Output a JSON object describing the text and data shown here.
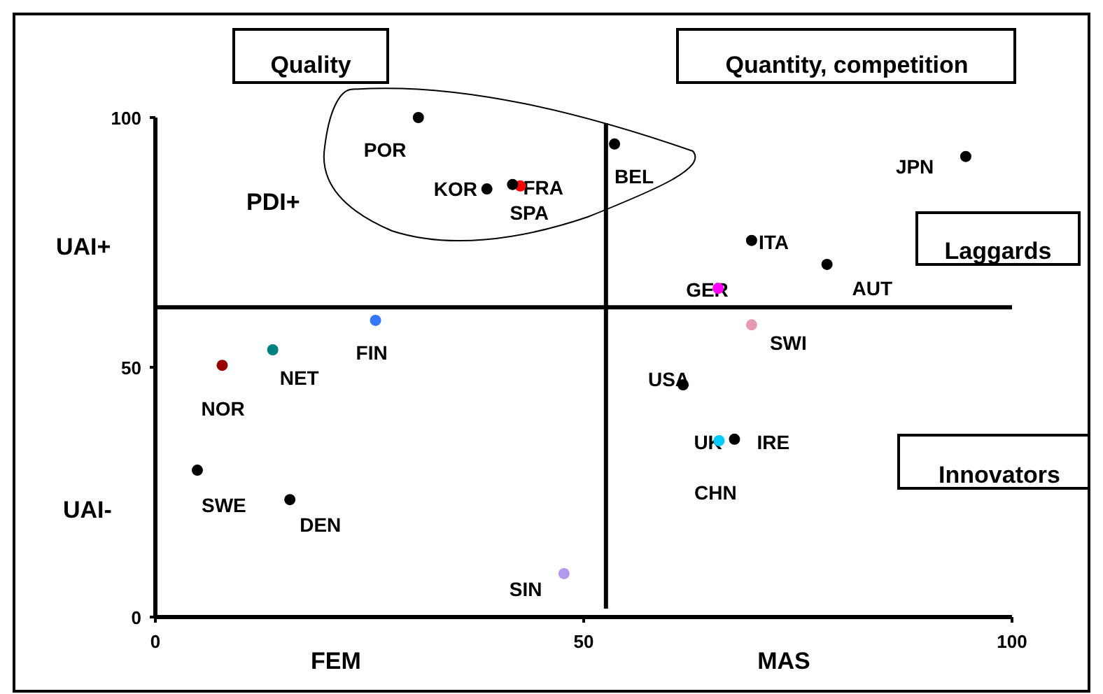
{
  "chart_data": {
    "type": "scatter",
    "marker": "circle",
    "grid": false,
    "xlim": [
      0,
      100
    ],
    "xticks": [
      0,
      50,
      100
    ],
    "ylim": [
      0,
      100
    ],
    "yticks": [
      0,
      50,
      100
    ],
    "series": [
      {
        "name": "POR",
        "color": "#000000",
        "x": [
          30.7
        ],
        "values": [
          100
        ]
      },
      {
        "name": "KOR",
        "color": "#000000",
        "x": [
          38.7
        ],
        "values": [
          85.7
        ]
      },
      {
        "name": "FRA",
        "color": "#ff0000",
        "x": [
          42.6
        ],
        "values": [
          86.3
        ]
      },
      {
        "name": "SPA",
        "color": "#000000",
        "x": [
          41.7
        ],
        "values": [
          86.6
        ]
      },
      {
        "name": "BEL",
        "color": "#000000",
        "x": [
          53.6
        ],
        "values": [
          94.7
        ]
      },
      {
        "name": "JPN",
        "color": "#000000",
        "x": [
          94.6
        ],
        "values": [
          92.2
        ]
      },
      {
        "name": "ITA",
        "color": "#000000",
        "x": [
          69.6
        ],
        "values": [
          75.4
        ]
      },
      {
        "name": "AUT",
        "color": "#000000",
        "x": [
          78.4
        ],
        "values": [
          70.6
        ]
      },
      {
        "name": "GER",
        "color": "#ff00ff",
        "x": [
          65.7
        ],
        "values": [
          65.8
        ]
      },
      {
        "name": "SWI",
        "color": "#e699b3",
        "x": [
          69.6
        ],
        "values": [
          58.5
        ]
      },
      {
        "name": "FIN",
        "color": "#3377ff",
        "x": [
          25.7
        ],
        "values": [
          59.4
        ]
      },
      {
        "name": "NET",
        "color": "#008080",
        "x": [
          13.7
        ],
        "values": [
          53.5
        ]
      },
      {
        "name": "NOR",
        "color": "#990000",
        "x": [
          7.8
        ],
        "values": [
          50.4
        ]
      },
      {
        "name": "SWE",
        "color": "#000000",
        "x": [
          4.9
        ],
        "values": [
          29.4
        ]
      },
      {
        "name": "DEN",
        "color": "#000000",
        "x": [
          15.7
        ],
        "values": [
          23.5
        ]
      },
      {
        "name": "SIN",
        "color": "#b399ee",
        "x": [
          47.7
        ],
        "values": [
          8.7
        ]
      },
      {
        "name": "USA",
        "color": "#000000",
        "x": [
          61.6
        ],
        "values": [
          46.5
        ]
      },
      {
        "name": "UK",
        "color": "#00ccff",
        "x": [
          65.8
        ],
        "values": [
          35.3
        ]
      },
      {
        "name": "IRE",
        "color": "#000000",
        "x": [
          67.6
        ],
        "values": [
          35.6
        ]
      }
    ],
    "ref_lines": [
      {
        "axis": "y",
        "value": 62,
        "color": "#000000"
      },
      {
        "axis": "x",
        "value": 52.6,
        "color": "#000000"
      }
    ],
    "annotations": [
      "Quality",
      "Quantity, competition",
      "Laggards",
      "Innovators",
      "PDI+",
      "UAI+",
      "UAI-",
      "FEM",
      "MAS",
      "CHN"
    ]
  }
}
